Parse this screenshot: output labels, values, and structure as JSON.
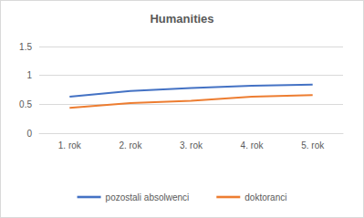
{
  "chart_data": {
    "type": "line",
    "title": "Humanities",
    "categories": [
      "1. rok",
      "2. rok",
      "3. rok",
      "4. rok",
      "5. rok"
    ],
    "series": [
      {
        "name": "pozostali absolwenci",
        "color": "#4472c4",
        "values": [
          0.63,
          0.73,
          0.78,
          0.82,
          0.84
        ]
      },
      {
        "name": "doktoranci",
        "color": "#ed7d31",
        "values": [
          0.44,
          0.52,
          0.56,
          0.63,
          0.66
        ]
      }
    ],
    "ylim": [
      0,
      1.5
    ],
    "yticks": [
      0,
      0.5,
      1,
      1.5
    ],
    "grid": true,
    "legend": "bottom",
    "marker": "none",
    "line_style": "solid"
  }
}
